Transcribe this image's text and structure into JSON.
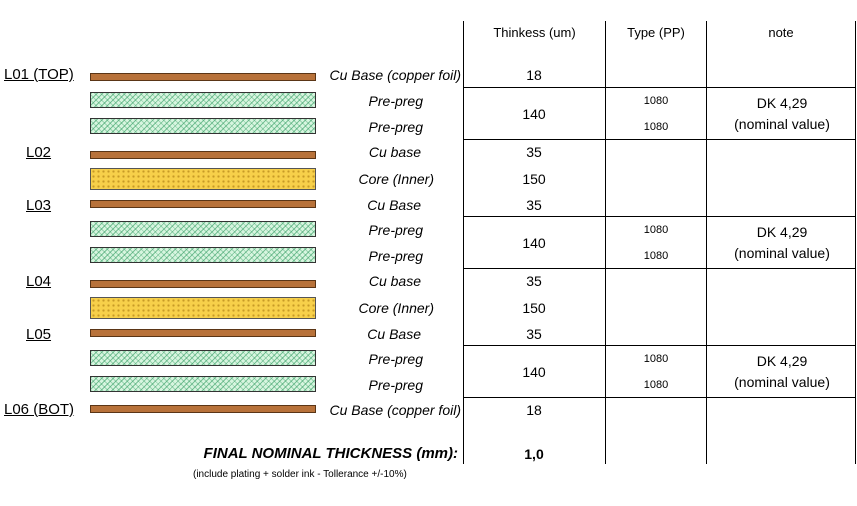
{
  "headers": {
    "thickness": "Thinkess (um)",
    "type": "Type (PP)",
    "note": "note"
  },
  "layers": {
    "l01": "L01 (TOP)",
    "l02": "L02",
    "l03": "L03",
    "l04": "L04",
    "l05": "L05",
    "l06": "L06 (BOT)"
  },
  "rows": {
    "r1_mat": "Cu Base (copper foil)",
    "r1_th": "18",
    "r2_mat": "Pre-preg",
    "r2_pp": "1080",
    "r3_mat": "Pre-preg",
    "r3_pp": "1080",
    "g1_th": "140",
    "g1_note1": "DK 4,29",
    "g1_note2": "(nominal value)",
    "r4_mat": "Cu base",
    "r4_th": "35",
    "r5_mat": "Core (Inner)",
    "r5_th": "150",
    "r6_mat": "Cu Base",
    "r6_th": "35",
    "r7_mat": "Pre-preg",
    "r7_pp": "1080",
    "r8_mat": "Pre-preg",
    "r8_pp": "1080",
    "g2_th": "140",
    "g2_note1": "DK 4,29",
    "g2_note2": "(nominal value)",
    "r9_mat": "Cu base",
    "r9_th": "35",
    "r10_mat": "Core (Inner)",
    "r10_th": "150",
    "r11_mat": "Cu Base",
    "r11_th": "35",
    "r12_mat": "Pre-preg",
    "r12_pp": "1080",
    "r13_mat": "Pre-preg",
    "r13_pp": "1080",
    "g3_th": "140",
    "g3_note1": "DK 4,29",
    "g3_note2": "(nominal value)",
    "r14_mat": "Cu Base (copper foil)",
    "r14_th": "18"
  },
  "final": {
    "label": "FINAL NOMINAL THICKNESS (mm):",
    "value": "1,0",
    "note": "(include plating + solder ink - Tollerance +/-10%)"
  },
  "colors": {
    "copper": "#b8723a",
    "prepreg": "#d7f5df",
    "core": "#f7d04a",
    "lines": "#000000"
  }
}
